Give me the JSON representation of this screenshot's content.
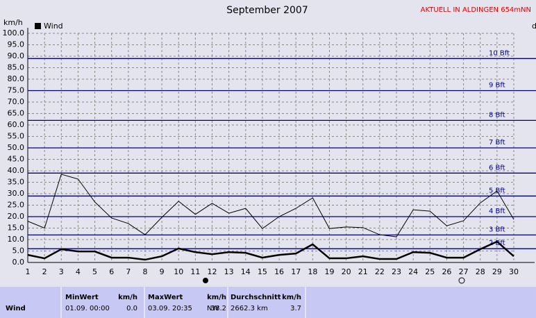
{
  "chart_data": {
    "type": "line",
    "title": "September 2007",
    "station": "AKTUELL IN ALDINGEN 654mNN",
    "y_label": "km/h",
    "right_label": "d",
    "x": [
      1,
      2,
      3,
      4,
      5,
      6,
      7,
      8,
      9,
      10,
      11,
      12,
      13,
      14,
      15,
      16,
      17,
      18,
      19,
      20,
      21,
      22,
      23,
      24,
      25,
      26,
      27,
      28,
      29,
      30
    ],
    "xlim": [
      1,
      30
    ],
    "xticks": [
      1,
      2,
      3,
      4,
      5,
      6,
      7,
      8,
      9,
      10,
      11,
      12,
      13,
      14,
      15,
      16,
      17,
      18,
      19,
      20,
      21,
      22,
      23,
      24,
      25,
      26,
      27,
      28,
      29,
      30
    ],
    "ylim": [
      0,
      100
    ],
    "yticks": [
      {
        "value": 0,
        "label": "0.0"
      },
      {
        "value": 5,
        "label": "5.0"
      },
      {
        "value": 10,
        "label": "10.0"
      },
      {
        "value": 15,
        "label": "15.0"
      },
      {
        "value": 20,
        "label": "20.0"
      },
      {
        "value": 25,
        "label": "25.0"
      },
      {
        "value": 30,
        "label": "30.0"
      },
      {
        "value": 35,
        "label": "35.0"
      },
      {
        "value": 40,
        "label": "40.0"
      },
      {
        "value": 45,
        "label": "45.0"
      },
      {
        "value": 50,
        "label": "50.0"
      },
      {
        "value": 55,
        "label": "55.0"
      },
      {
        "value": 60,
        "label": "60.0"
      },
      {
        "value": 65,
        "label": "65.0"
      },
      {
        "value": 70,
        "label": "70.0"
      },
      {
        "value": 75,
        "label": "75.0"
      },
      {
        "value": 80,
        "label": "80.0"
      },
      {
        "value": 85,
        "label": "85.0"
      },
      {
        "value": 90,
        "label": "90.0"
      },
      {
        "value": 95,
        "label": "95.0"
      },
      {
        "value": 100,
        "label": "100.0"
      }
    ],
    "grid": true,
    "series": [
      {
        "color": "#000000",
        "width": 1,
        "values": [
          18,
          15,
          38.5,
          36.4,
          26.4,
          19.4,
          17,
          12.1,
          19.7,
          26.7,
          21,
          25.8,
          21.5,
          23.6,
          14.8,
          20,
          23.6,
          28.2,
          14.8,
          15.5,
          15.2,
          12.1,
          11.2,
          23,
          22.4,
          16,
          18.2,
          26,
          31.2,
          18.8
        ]
      },
      {
        "name": "Wind",
        "color": "#000000",
        "width": 2.5,
        "values": [
          3.3,
          1.8,
          5.8,
          4.8,
          4.8,
          2.1,
          2.1,
          1.2,
          2.7,
          6.1,
          4.5,
          3.6,
          4.5,
          4.2,
          2.1,
          3.3,
          3.9,
          7.9,
          1.8,
          1.8,
          2.7,
          1.5,
          1.5,
          4.5,
          4.2,
          2.1,
          2.1,
          5.8,
          9.1,
          2.7
        ]
      }
    ],
    "annotations": [
      {
        "label": "2 Bft",
        "value": 6
      },
      {
        "label": "3 Bft",
        "value": 12
      },
      {
        "label": "4 Bft",
        "value": 20
      },
      {
        "label": "5 Bft",
        "value": 29
      },
      {
        "label": "6 Bft",
        "value": 39
      },
      {
        "label": "7 Bft",
        "value": 50
      },
      {
        "label": "8 Bft",
        "value": 62
      },
      {
        "label": "9 Bft",
        "value": 75
      },
      {
        "label": "10 Bft",
        "value": 89
      }
    ],
    "annotation_color": "#000080"
  },
  "table": {
    "headers": [
      [
        "MinWert",
        "km/h"
      ],
      [
        "MaxWert",
        "km/h"
      ],
      [
        "Durchschnitt",
        "km/h"
      ]
    ],
    "row": {
      "label": "Wind",
      "min_time": "01.09.  00:00",
      "min": "0.0",
      "max_time": "03.09.  20:35",
      "max_dir": "NW",
      "max": "38.2",
      "total": "2662.3 km",
      "avg": "3.7"
    }
  }
}
